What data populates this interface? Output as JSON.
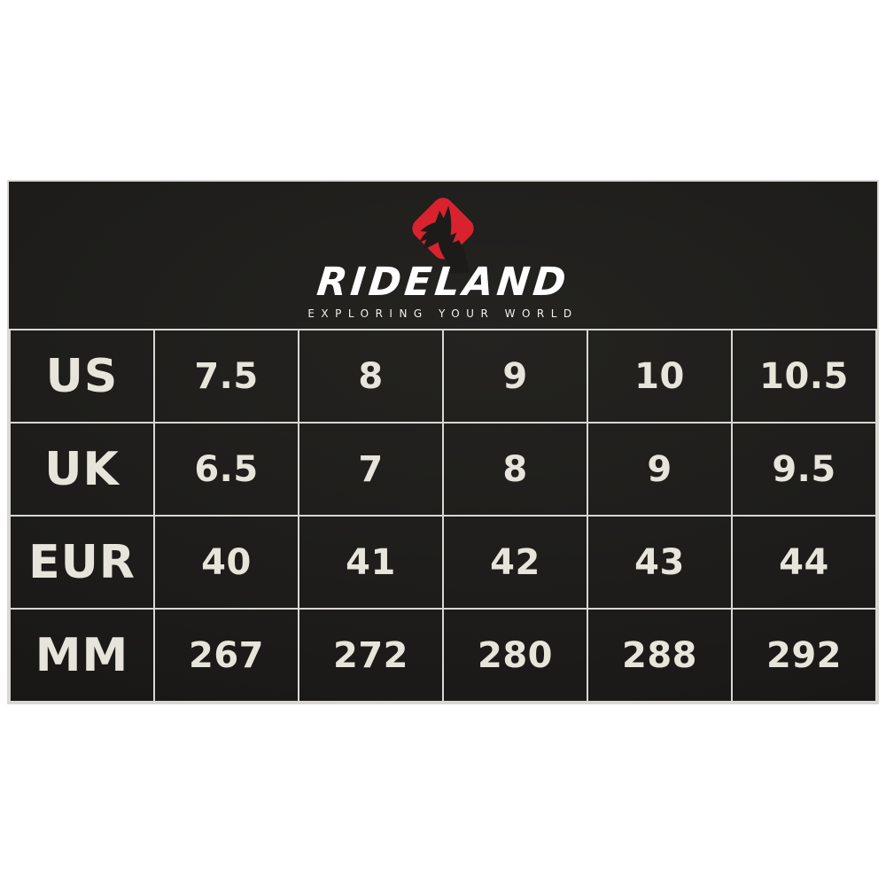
{
  "brand": {
    "name": "RIDELAND",
    "tagline": "EXPLORING YOUR WORLD",
    "logo_icon": "wolf-in-red-rounded-diamond",
    "colors": {
      "accent_red": "#d8232e",
      "panel_dark": "#1c1b19",
      "grid_line": "#d8d7d2",
      "text_light": "#e6e4db",
      "page_background": "#ffffff"
    }
  },
  "size_table": {
    "rows": [
      {
        "label": "US",
        "values": [
          "7.5",
          "8",
          "9",
          "10",
          "10.5"
        ]
      },
      {
        "label": "UK",
        "values": [
          "6.5",
          "7",
          "8",
          "9",
          "9.5"
        ]
      },
      {
        "label": "EUR",
        "values": [
          "40",
          "41",
          "42",
          "43",
          "44"
        ]
      },
      {
        "label": "MM",
        "values": [
          "267",
          "272",
          "280",
          "288",
          "292"
        ]
      }
    ]
  },
  "chart_data": {
    "type": "table",
    "title": "RIDELAND shoe size conversion chart",
    "row_headers": [
      "US",
      "UK",
      "EUR",
      "MM"
    ],
    "rows": [
      [
        "7.5",
        "8",
        "9",
        "10",
        "10.5"
      ],
      [
        "6.5",
        "7",
        "8",
        "9",
        "9.5"
      ],
      [
        "40",
        "41",
        "42",
        "43",
        "44"
      ],
      [
        "267",
        "272",
        "280",
        "288",
        "292"
      ]
    ],
    "layout": "first column contains row headers; 5 size columns; light grid lines on dark background"
  }
}
